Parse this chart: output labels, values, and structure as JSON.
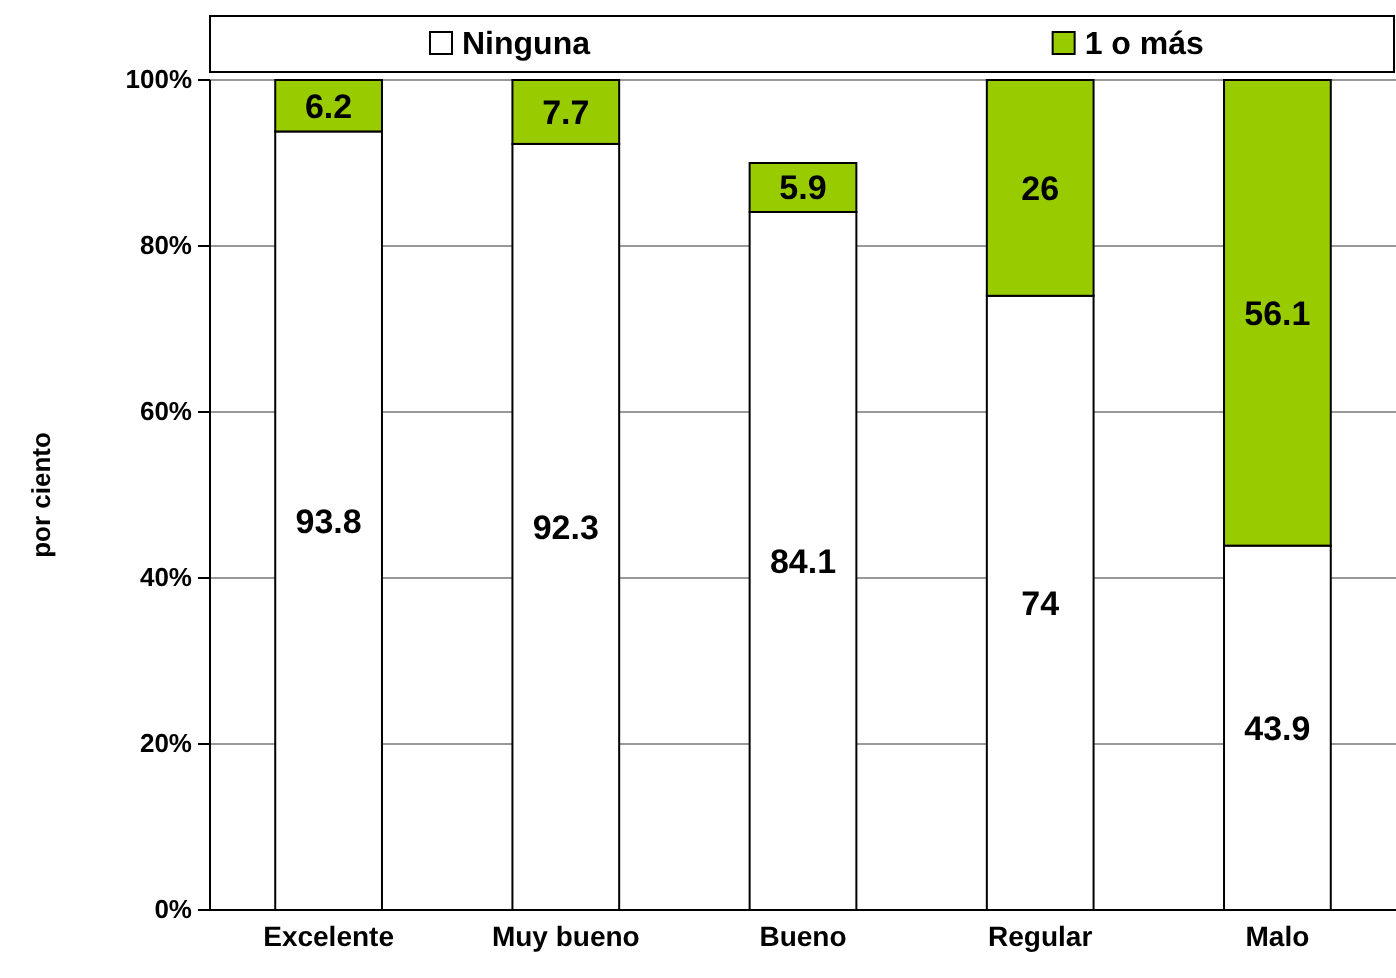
{
  "chart_data": {
    "type": "bar",
    "stacked": true,
    "ylabel": "por ciento",
    "categories": [
      "Excelente",
      "Muy bueno",
      "Bueno",
      "Regular",
      "Malo"
    ],
    "series": [
      {
        "name": "Ninguna",
        "color": "#ffffff",
        "values": [
          93.8,
          92.3,
          84.1,
          74,
          43.9
        ]
      },
      {
        "name": "1 o más",
        "color": "#99cc00",
        "values": [
          6.2,
          7.7,
          5.9,
          26,
          56.1
        ]
      }
    ],
    "ylim": [
      0,
      100
    ],
    "yticks": [
      {
        "value": 0,
        "label": "0%"
      },
      {
        "value": 20,
        "label": "20%"
      },
      {
        "value": 40,
        "label": "40%"
      },
      {
        "value": 60,
        "label": "60%"
      },
      {
        "value": 80,
        "label": "80%"
      },
      {
        "value": 100,
        "label": "100%"
      }
    ],
    "grid": "y",
    "legend": "top",
    "data_labels": true
  }
}
